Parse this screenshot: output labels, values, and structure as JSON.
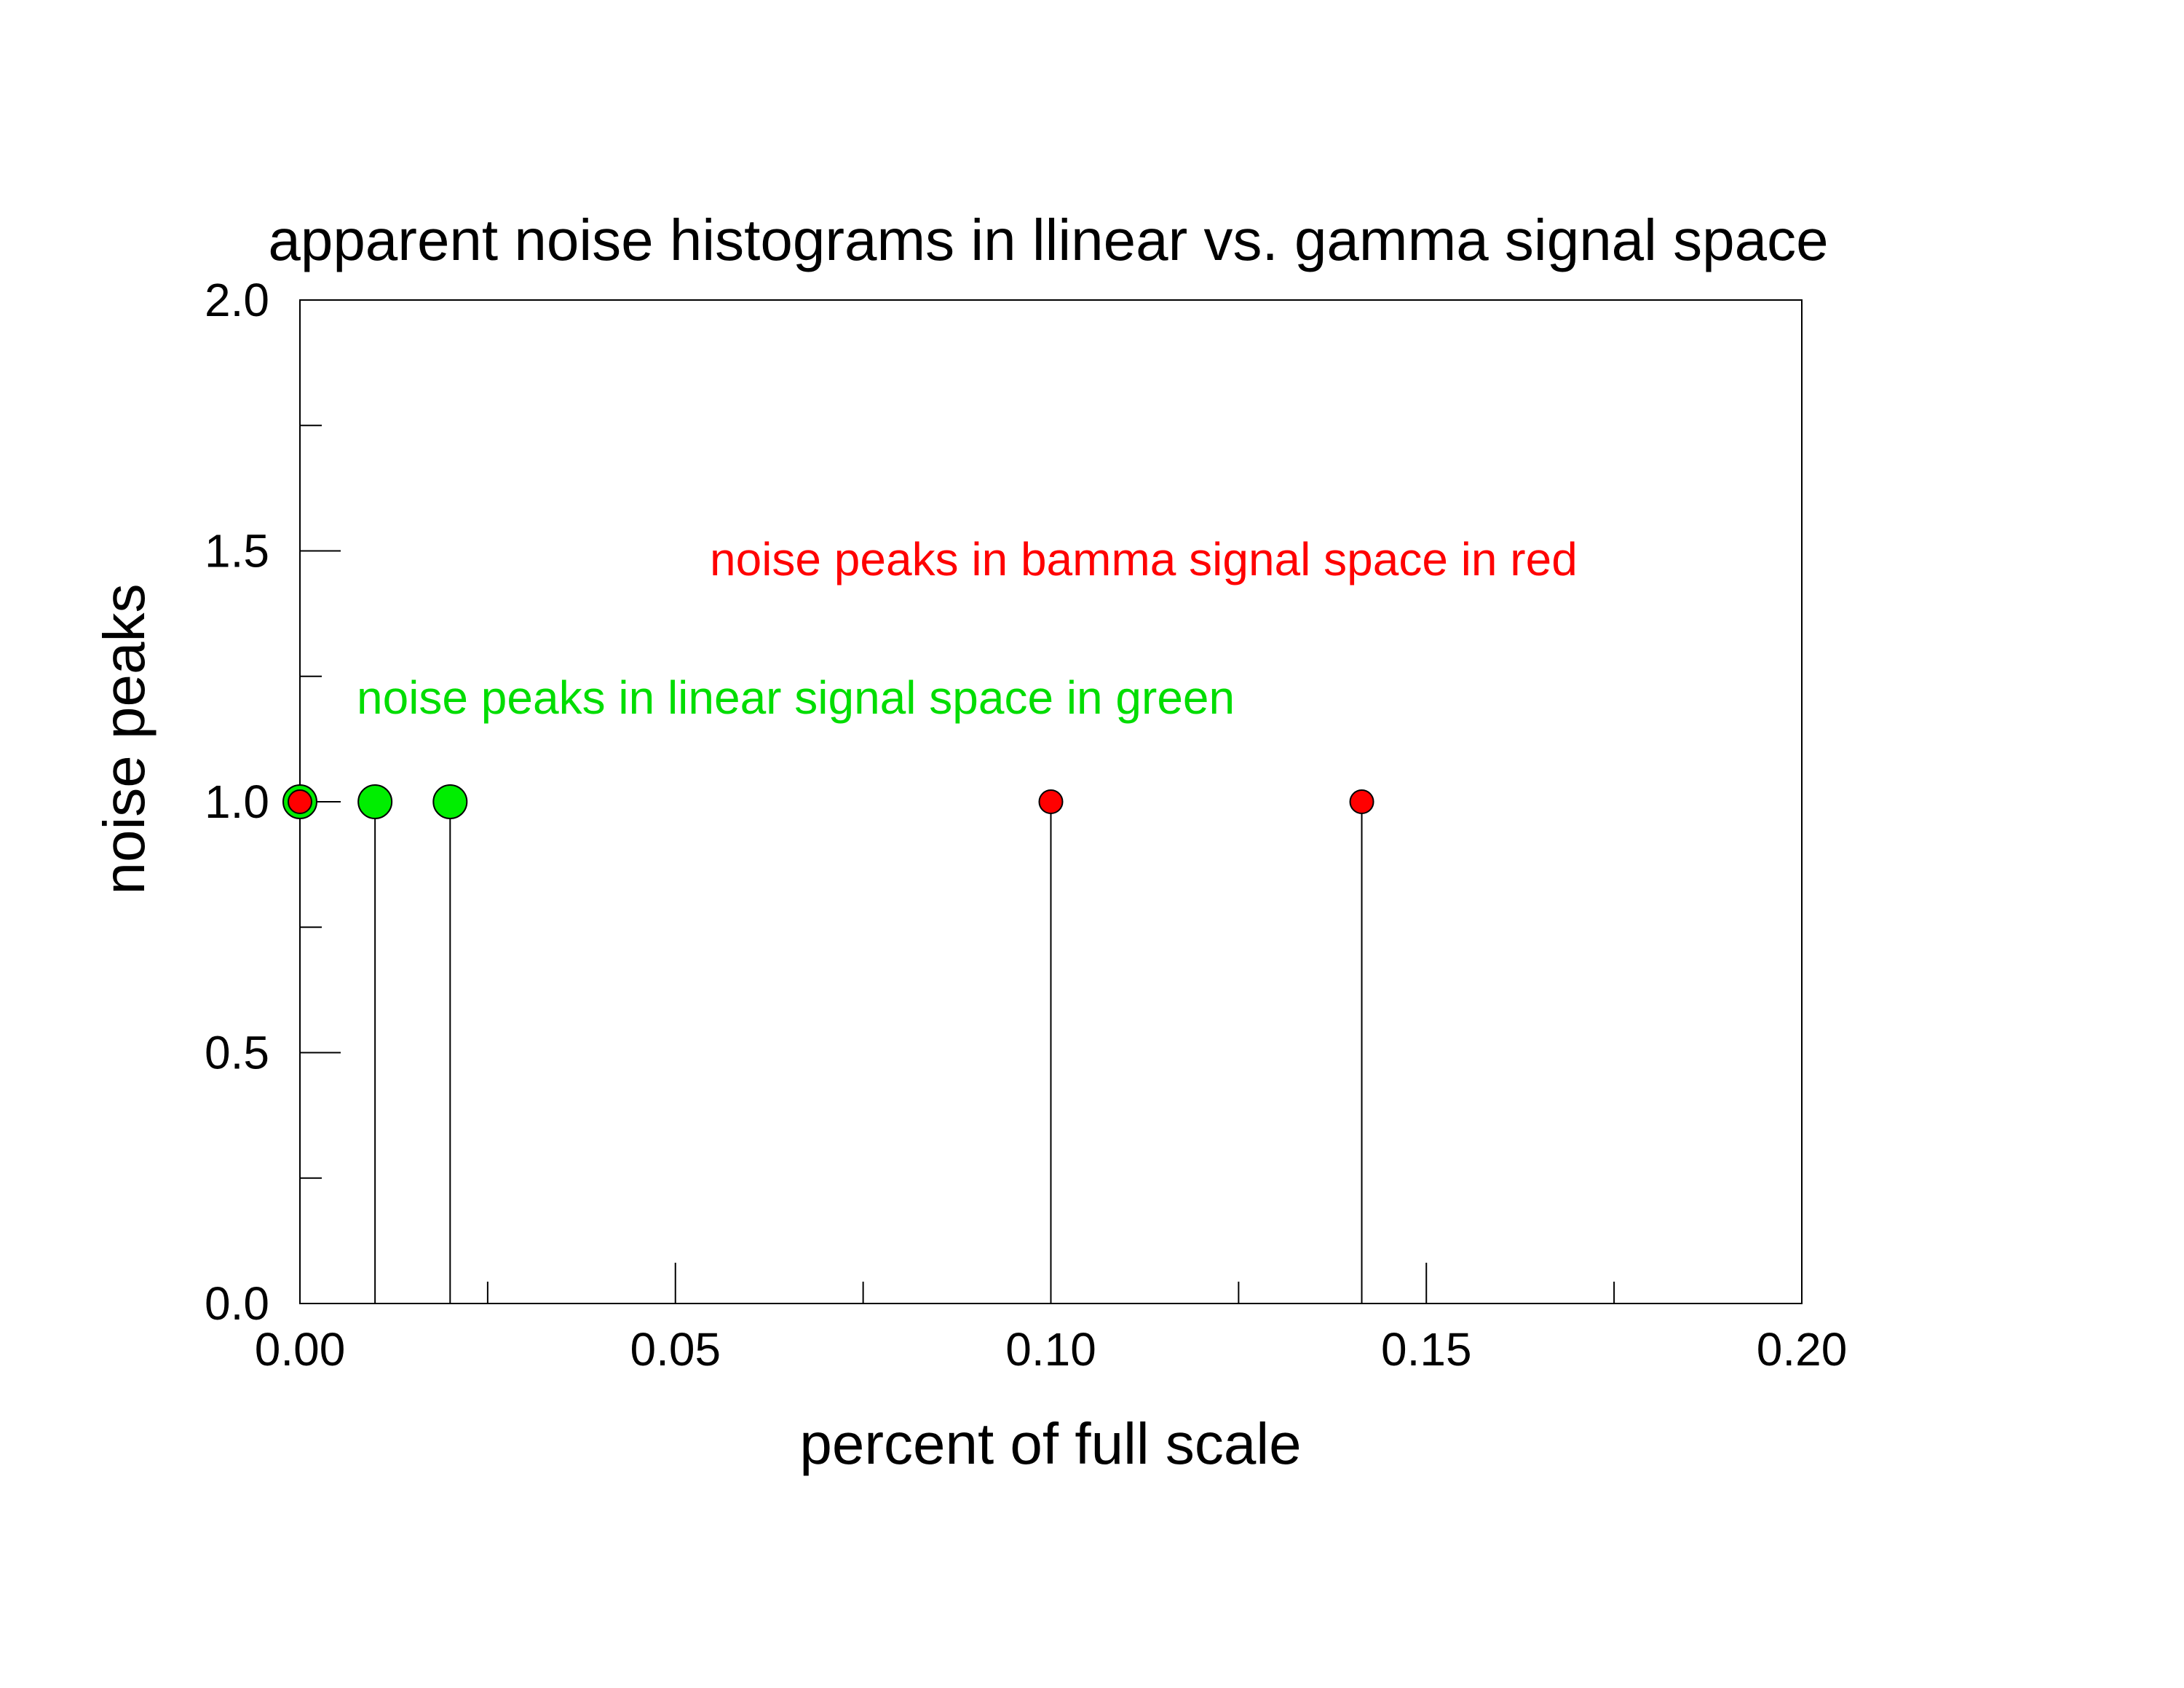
{
  "chart_data": {
    "type": "scatter",
    "title": "apparent noise histograms in llinear vs. gamma signal space",
    "xlabel": "percent of full scale",
    "ylabel": "noise peaks",
    "xlim": [
      0,
      0.2
    ],
    "ylim": [
      0,
      2
    ],
    "x_ticks": [
      "0.00",
      "0.05",
      "0.10",
      "0.15",
      "0.20"
    ],
    "y_ticks": [
      "0.0",
      "0.5",
      "1.0",
      "1.5",
      "2.0"
    ],
    "x_major": [
      0,
      0.05,
      0.1,
      0.15,
      0.2
    ],
    "y_major": [
      0,
      0.5,
      1,
      1.5,
      2
    ],
    "x_minor": [
      0.025,
      0.075,
      0.125,
      0.175
    ],
    "y_minor": [
      0.25,
      0.75,
      1.25,
      1.75
    ],
    "grid": false,
    "series": [
      {
        "color": "#00ee00",
        "x": [
          0.0,
          0.01,
          0.02
        ],
        "y": [
          1,
          1,
          1
        ]
      },
      {
        "color": "#ff0000",
        "x": [
          0.0,
          0.1,
          0.1414
        ],
        "y": [
          1,
          1,
          1
        ]
      }
    ],
    "annotations": [
      {
        "text": "noise peaks in bamma signal space in red",
        "color": "#ff0000"
      },
      {
        "text": "noise peaks in linear signal space in green",
        "color": "#00dd00"
      }
    ]
  }
}
